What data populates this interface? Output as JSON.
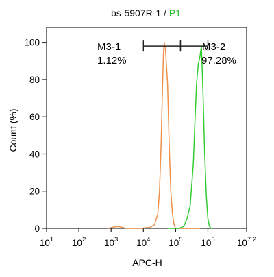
{
  "chart_data": {
    "type": "line",
    "title": {
      "sample": "bs-5907R-1",
      "separator": " / ",
      "gate": "P1"
    },
    "xlabel": "APC-H",
    "ylabel": "Count  (%)",
    "x_scale": "log",
    "xlim": [
      10,
      15848932
    ],
    "ylim": [
      0,
      108
    ],
    "x_ticks": [
      {
        "base": "10",
        "exp": "1",
        "value": 10
      },
      {
        "base": "10",
        "exp": "2",
        "value": 100
      },
      {
        "base": "10",
        "exp": "3",
        "value": 1000
      },
      {
        "base": "10",
        "exp": "4",
        "value": 10000
      },
      {
        "base": "10",
        "exp": "5",
        "value": 100000
      },
      {
        "base": "10",
        "exp": "6",
        "value": 1000000
      },
      {
        "base": "10",
        "exp": "7.2",
        "value": 15848932
      }
    ],
    "y_ticks": [
      {
        "label": "0",
        "value": 0
      },
      {
        "label": "20",
        "value": 20
      },
      {
        "label": "40",
        "value": 40
      },
      {
        "label": "60",
        "value": 60
      },
      {
        "label": "80",
        "value": 80
      },
      {
        "label": "100",
        "value": 100
      }
    ],
    "grid": false,
    "series": [
      {
        "color": "#f0904a",
        "points": [
          [
            794,
            0
          ],
          [
            1259,
            0.8
          ],
          [
            1585,
            1.0
          ],
          [
            1995,
            0.8
          ],
          [
            2512,
            0.3
          ],
          [
            3162,
            0
          ],
          [
            6310,
            0
          ],
          [
            7943,
            0
          ],
          [
            10000,
            0.2
          ],
          [
            15849,
            0.5
          ],
          [
            22387,
            2
          ],
          [
            28184,
            8
          ],
          [
            31623,
            20
          ],
          [
            35481,
            45
          ],
          [
            39811,
            80
          ],
          [
            42170,
            95
          ],
          [
            44668,
            100
          ],
          [
            48978,
            95
          ],
          [
            56234,
            78
          ],
          [
            63096,
            45
          ],
          [
            70795,
            20
          ],
          [
            79433,
            8
          ],
          [
            89125,
            2
          ],
          [
            100000,
            0
          ],
          [
            562341,
            0
          ]
        ]
      },
      {
        "color": "#33cc33",
        "points": [
          [
            56234,
            0
          ],
          [
            125893,
            0
          ],
          [
            177828,
            1
          ],
          [
            223872,
            5
          ],
          [
            281838,
            12
          ],
          [
            354813,
            35
          ],
          [
            398107,
            58
          ],
          [
            446684,
            78
          ],
          [
            501187,
            88
          ],
          [
            562341,
            92
          ],
          [
            630957,
            98
          ],
          [
            707946,
            72
          ],
          [
            794328,
            40
          ],
          [
            891251,
            18
          ],
          [
            1000000,
            5
          ],
          [
            1122018,
            1
          ],
          [
            1258925,
            0
          ],
          [
            1412538,
            0
          ]
        ]
      }
    ],
    "gates": [
      {
        "name": "M3-1",
        "percent": "1.12%",
        "x_start": 10000,
        "x_end": 141254,
        "y": 98
      },
      {
        "name": "M3-2",
        "percent": "97.28%",
        "x_start": 141254,
        "x_end": 1000000,
        "y": 98
      }
    ]
  }
}
